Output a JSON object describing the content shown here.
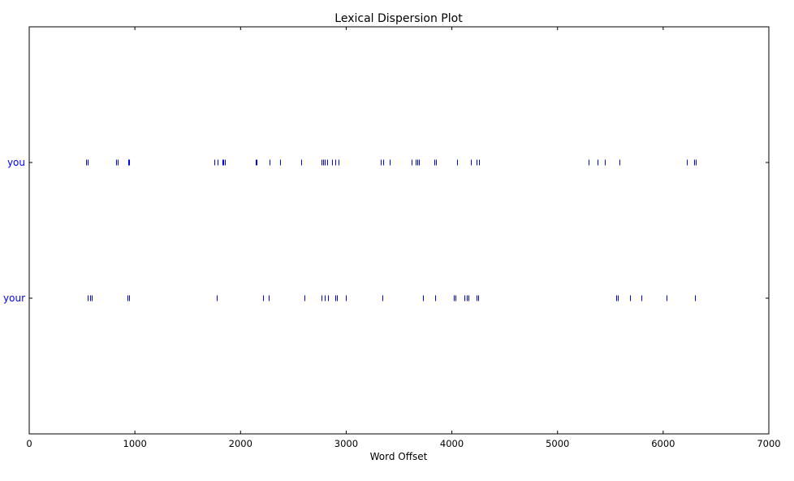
{
  "chart_data": {
    "type": "scatter",
    "title": "Lexical Dispersion Plot",
    "xlabel": "Word Offset",
    "ylabel": "",
    "xlim": [
      0,
      7000
    ],
    "xticks": [
      0,
      1000,
      2000,
      3000,
      4000,
      5000,
      6000,
      7000
    ],
    "grid": false,
    "marker": "|",
    "colors": {
      "marker": "#0000ff",
      "category_label": "#0000ff",
      "axes": "#000000",
      "background": "#ffffff"
    },
    "categories": [
      "you",
      "your"
    ],
    "series": [
      {
        "name": "you",
        "x": [
          535,
          555,
          820,
          840,
          935,
          945,
          1755,
          1780,
          1825,
          1840,
          1855,
          2140,
          2155,
          2275,
          2375,
          2575,
          2765,
          2785,
          2800,
          2820,
          2865,
          2895,
          2925,
          3330,
          3350,
          3410,
          3620,
          3655,
          3670,
          3690,
          3835,
          3850,
          4050,
          4180,
          4235,
          4255,
          5295,
          5375,
          5445,
          5590,
          6225,
          6290,
          6310
        ]
      },
      {
        "name": "your",
        "x": [
          555,
          575,
          590,
          930,
          945,
          1775,
          2215,
          2270,
          2605,
          2765,
          2800,
          2830,
          2900,
          2915,
          2995,
          3340,
          3725,
          3845,
          4020,
          4035,
          4115,
          4140,
          4155,
          4230,
          4250,
          5555,
          5570,
          5685,
          5790,
          6030,
          6300
        ]
      }
    ]
  }
}
